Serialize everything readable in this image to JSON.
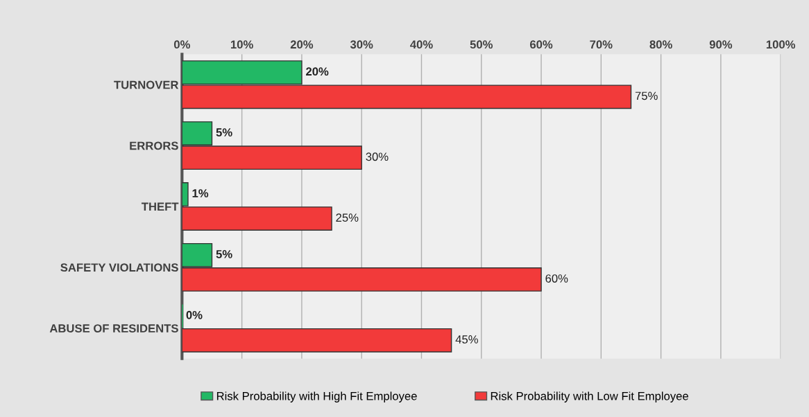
{
  "chart_data": {
    "type": "bar",
    "orientation": "horizontal",
    "categories": [
      "TURNOVER",
      "ERRORS",
      "THEFT",
      "SAFETY VIOLATIONS",
      "ABUSE OF RESIDENTS"
    ],
    "series": [
      {
        "name": "Risk Probability with High Fit Employee",
        "color": "#22b865",
        "values": [
          20,
          5,
          1,
          5,
          0
        ],
        "value_labels": [
          "20%",
          "5%",
          "1%",
          "5%",
          "0%"
        ]
      },
      {
        "name": "Risk Probability with Low Fit Employee",
        "color": "#f23a3a",
        "values": [
          75,
          30,
          25,
          60,
          45
        ],
        "value_labels": [
          "75%",
          "30%",
          "25%",
          "60%",
          "45%"
        ]
      }
    ],
    "xlim": [
      0,
      100
    ],
    "xticks": [
      {
        "value": 0,
        "label": "0%"
      },
      {
        "value": 10,
        "label": "10%"
      },
      {
        "value": 20,
        "label": "20%"
      },
      {
        "value": 30,
        "label": "30%"
      },
      {
        "value": 40,
        "label": "40%"
      },
      {
        "value": 50,
        "label": "50%"
      },
      {
        "value": 60,
        "label": "60%"
      },
      {
        "value": 70,
        "label": "70%"
      },
      {
        "value": 80,
        "label": "80%"
      },
      {
        "value": 90,
        "label": "90%"
      },
      {
        "value": 100,
        "label": "100%"
      }
    ],
    "grid": "x",
    "legend": "bottom"
  }
}
